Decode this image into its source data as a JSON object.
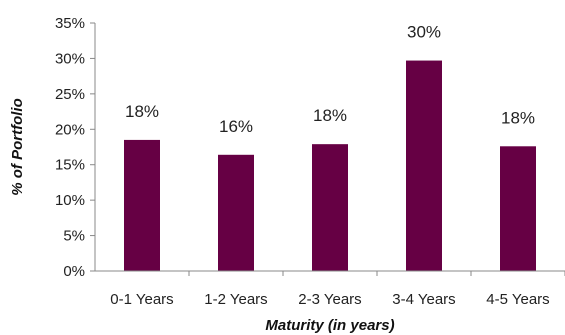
{
  "chart_data": {
    "type": "bar",
    "categories": [
      "0-1 Years",
      "1-2 Years",
      "2-3 Years",
      "3-4 Years",
      "4-5 Years"
    ],
    "values": [
      18.5,
      16.4,
      17.9,
      29.7,
      17.6
    ],
    "data_labels": [
      "18%",
      "16%",
      "18%",
      "30%",
      "18%"
    ],
    "title": "",
    "xlabel": "Maturity (in years)",
    "ylabel": "% of Portfolio",
    "ylim": [
      0,
      35
    ],
    "yticks": [
      0,
      5,
      10,
      15,
      20,
      25,
      30,
      35
    ],
    "ytick_labels": [
      "0%",
      "5%",
      "10%",
      "15%",
      "20%",
      "25%",
      "30%",
      "35%"
    ],
    "grid": false,
    "legend": "none",
    "bar_color": "#660044"
  }
}
